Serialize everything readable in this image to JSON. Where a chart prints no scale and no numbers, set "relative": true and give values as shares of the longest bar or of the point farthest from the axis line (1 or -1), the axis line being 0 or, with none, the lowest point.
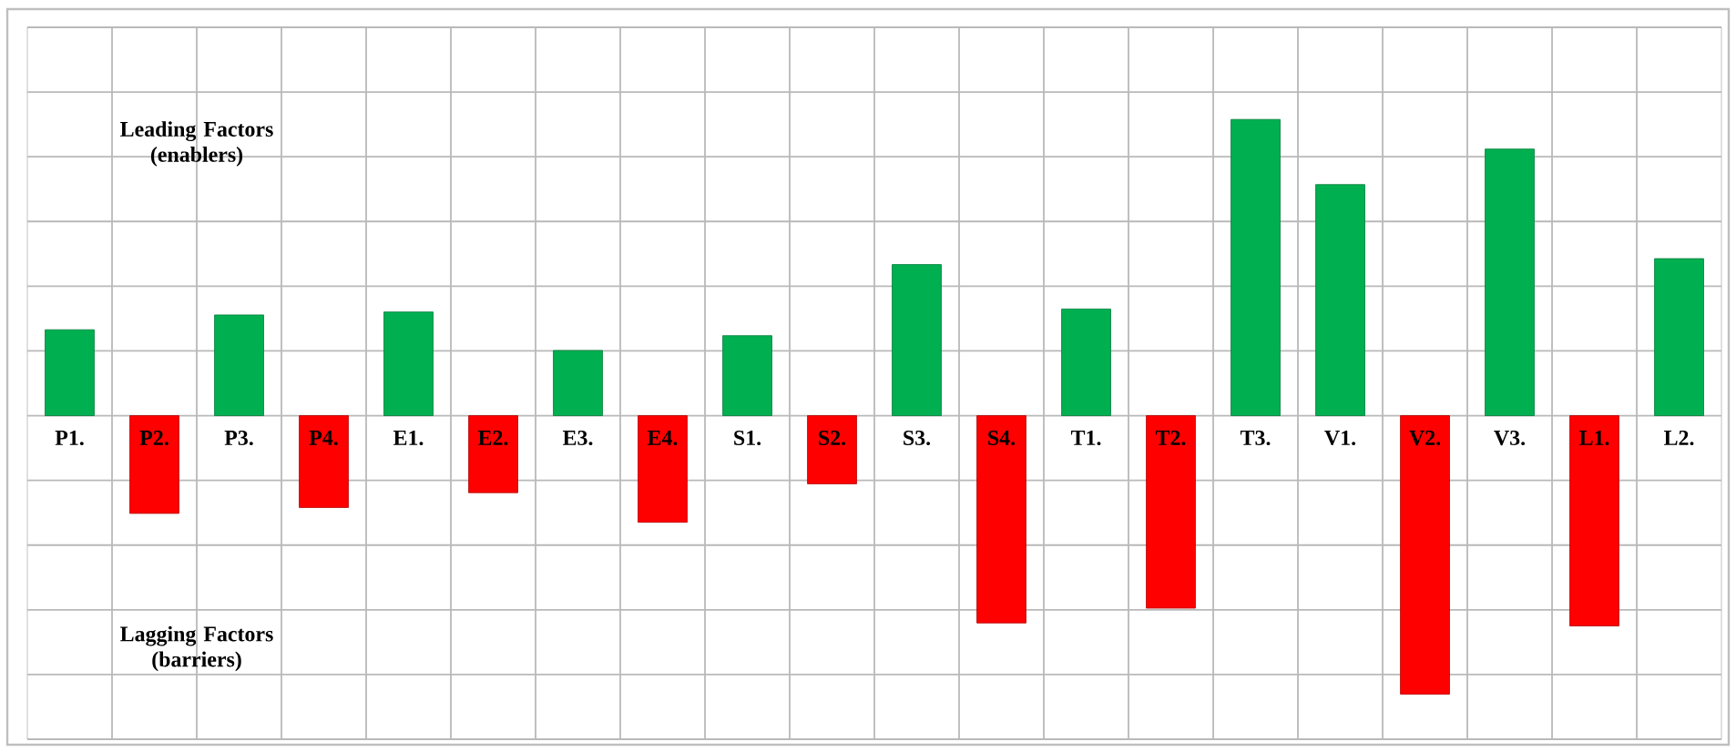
{
  "chart_data": {
    "type": "bar",
    "relative": true,
    "grid": true,
    "categories": [
      "P1.",
      "P2.",
      "P3.",
      "P4.",
      "E1.",
      "E2.",
      "E3.",
      "E4.",
      "S1.",
      "S2.",
      "S3.",
      "S4.",
      "T1.",
      "T2.",
      "T3.",
      "V1.",
      "V2.",
      "V3.",
      "L1.",
      "L2."
    ],
    "values": [
      0.29,
      -0.33,
      0.34,
      -0.31,
      0.35,
      -0.26,
      0.22,
      -0.36,
      0.27,
      -0.23,
      0.51,
      -0.7,
      0.36,
      -0.65,
      1,
      0.78,
      -0.94,
      0.9,
      -0.71,
      0.53
    ],
    "colors": [
      "#00b050",
      "#ff0000",
      "#00b050",
      "#ff0000",
      "#00b050",
      "#ff0000",
      "#00b050",
      "#ff0000",
      "#00b050",
      "#ff0000",
      "#00b050",
      "#ff0000",
      "#00b050",
      "#ff0000",
      "#00b050",
      "#00b050",
      "#ff0000",
      "#00b050",
      "#ff0000",
      "#00b050"
    ],
    "annotations": [
      "Leading Factors (enablers)",
      "Lagging Factors (barriers)"
    ]
  }
}
